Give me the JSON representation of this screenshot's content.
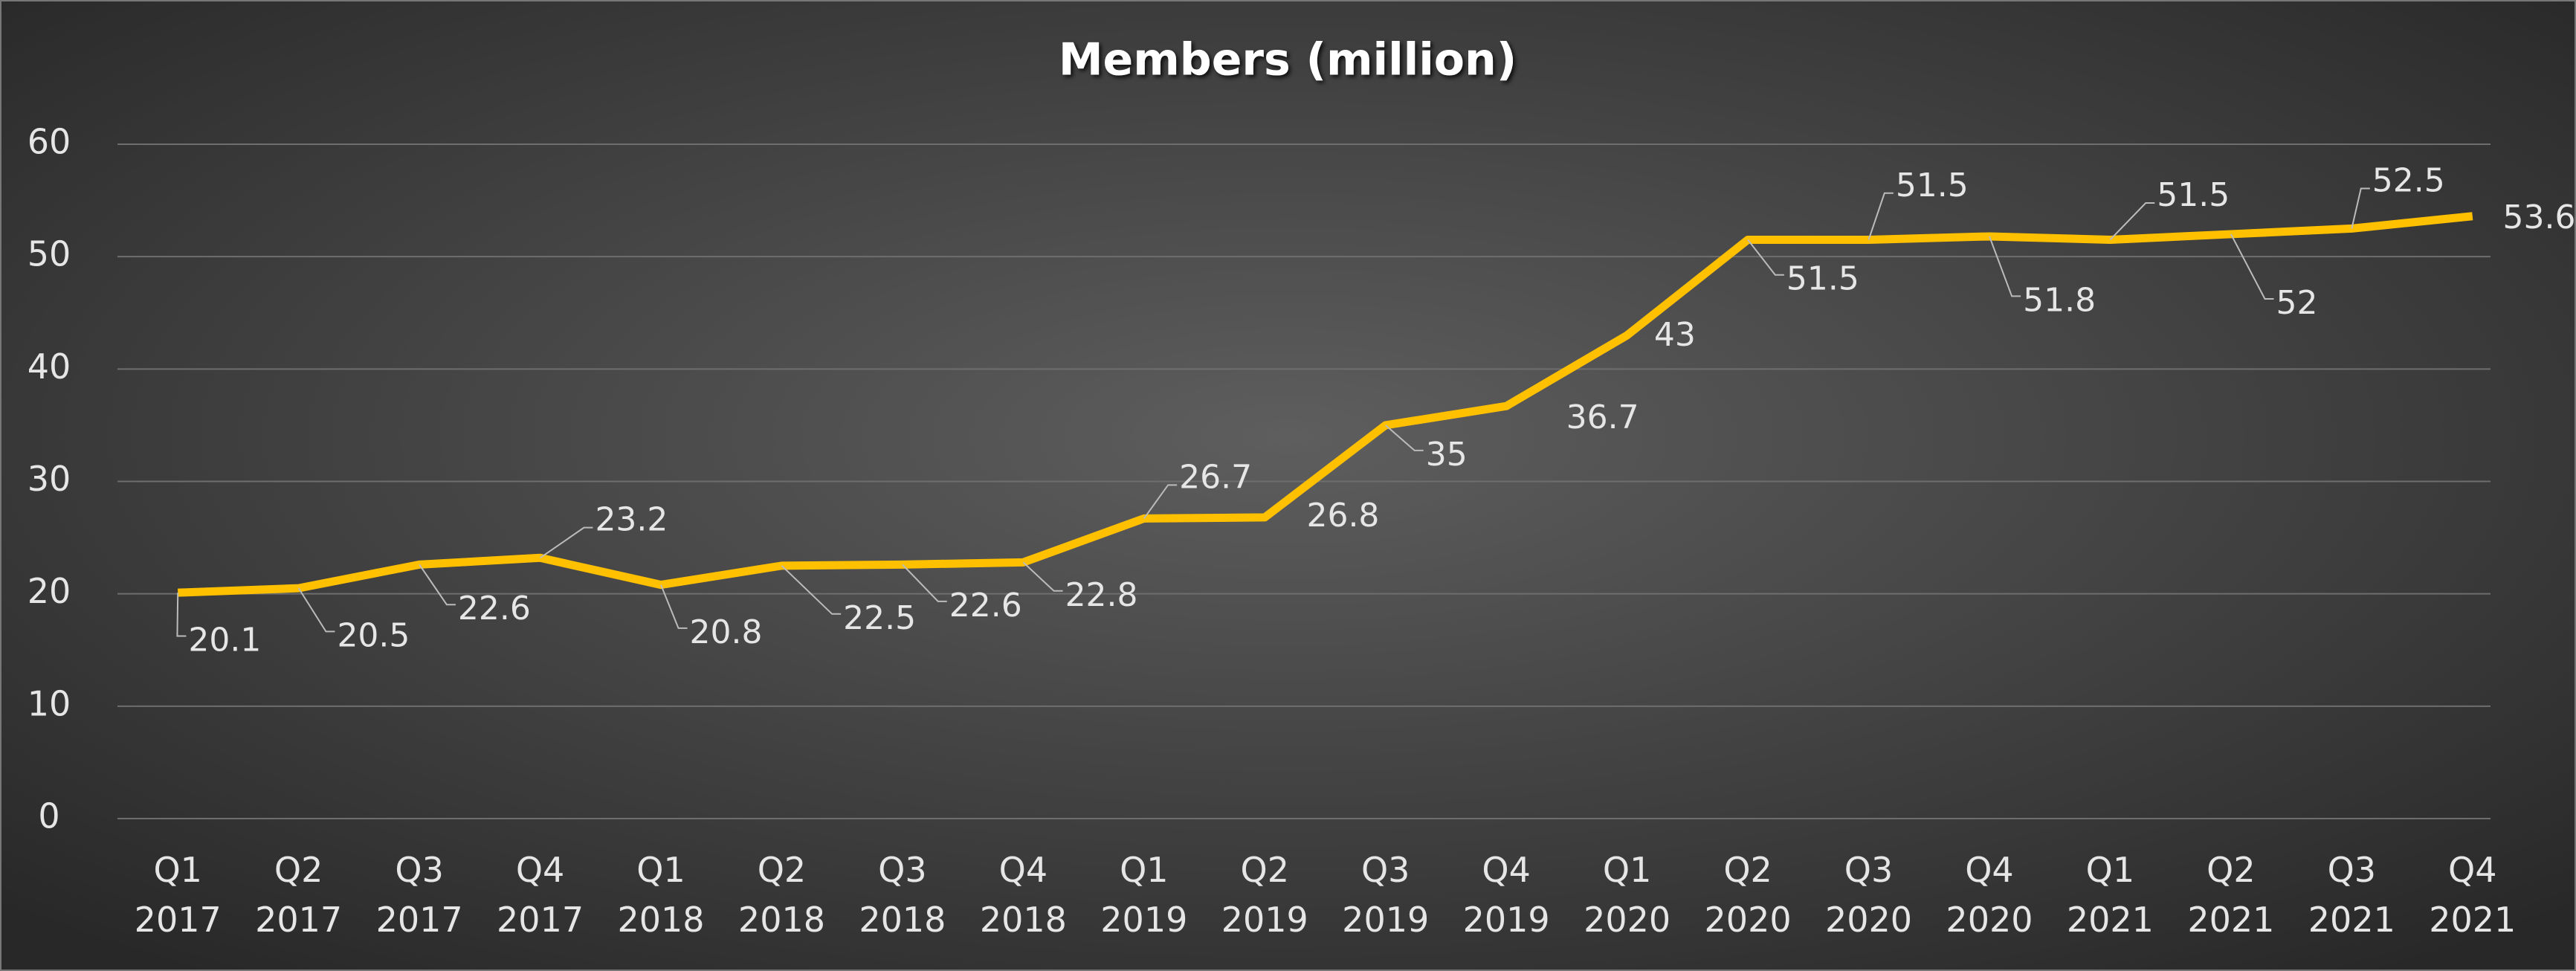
{
  "chart_data": {
    "type": "line",
    "title": "Members (million)",
    "categories": [
      "Q1 2017",
      "Q2 2017",
      "Q3 2017",
      "Q4 2017",
      "Q1 2018",
      "Q2 2018",
      "Q3 2018",
      "Q4 2018",
      "Q1 2019",
      "Q2 2019",
      "Q3 2019",
      "Q4 2019",
      "Q1 2020",
      "Q2 2020",
      "Q3 2020",
      "Q4 2020",
      "Q1 2021",
      "Q2 2021",
      "Q3 2021",
      "Q4 2021"
    ],
    "series": [
      {
        "name": "Members",
        "color": "#ffc000",
        "values": [
          20.1,
          20.5,
          22.6,
          23.2,
          20.8,
          22.5,
          22.6,
          22.8,
          26.7,
          26.8,
          35,
          36.7,
          43,
          51.5,
          51.5,
          51.8,
          51.5,
          52,
          52.5,
          53.6
        ]
      }
    ],
    "ylim": [
      0,
      60
    ],
    "yticks": [
      0,
      10,
      20,
      30,
      40,
      50,
      60
    ],
    "grid": true
  }
}
